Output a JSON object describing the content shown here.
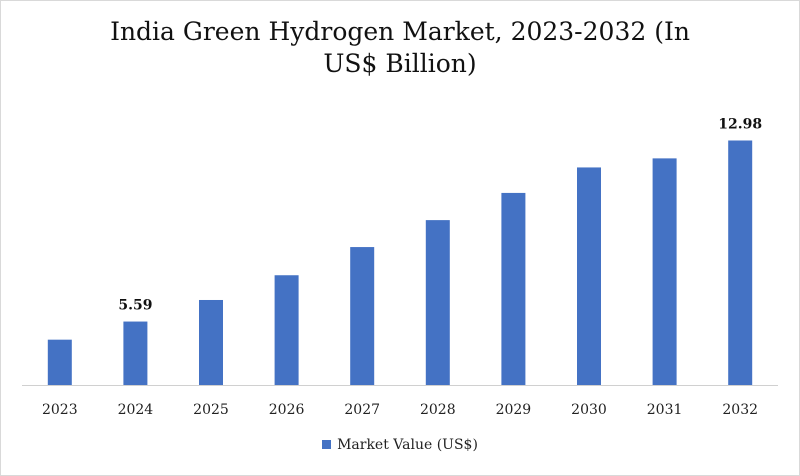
{
  "chart_data": {
    "type": "bar",
    "title_lines": [
      "India Green Hydrogen Market, 2023-2032 (In",
      "US$ Billion)"
    ],
    "categories": [
      "2023",
      "2024",
      "2025",
      "2026",
      "2027",
      "2028",
      "2029",
      "2030",
      "2031",
      "2032"
    ],
    "series": [
      {
        "name": "Market Value (US$)",
        "values": [
          4.85,
          5.59,
          6.47,
          7.48,
          8.63,
          9.73,
          10.84,
          11.88,
          12.25,
          12.98
        ],
        "color": "#4472c4"
      }
    ],
    "data_labels": [
      {
        "category": "2024",
        "text": "5.59"
      },
      {
        "category": "2032",
        "text": "12.98"
      }
    ],
    "ylim": [
      3.0,
      13.0
    ],
    "grid": false,
    "legend_position": "bottom"
  }
}
